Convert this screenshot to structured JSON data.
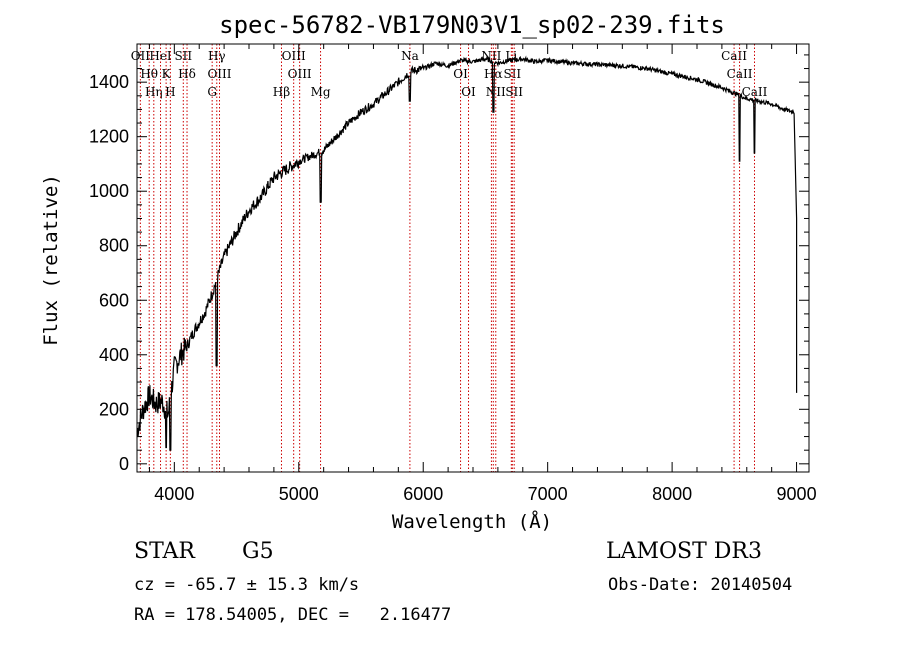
{
  "chart_data": {
    "type": "line",
    "title": "spec-56782-VB179N03V1_sp02-239.fits",
    "xlabel": "Wavelength (Å)",
    "ylabel": "Flux (relative)",
    "xlim": [
      3700,
      9100
    ],
    "ylim": [
      -30,
      1540
    ],
    "x_ticks": [
      4000,
      5000,
      6000,
      7000,
      8000,
      9000
    ],
    "y_ticks": [
      0,
      200,
      400,
      600,
      800,
      1000,
      1200,
      1400
    ],
    "x_tick_labels": [
      "4000",
      "5000",
      "6000",
      "7000",
      "8000",
      "9000"
    ],
    "y_tick_labels": [
      "0",
      "200",
      "400",
      "600",
      "800",
      "1000",
      "1200",
      "1400"
    ],
    "grid": false,
    "series": [
      {
        "name": "flux",
        "x": [
          3700,
          3750,
          3800,
          3850,
          3900,
          3950,
          4000,
          4050,
          4100,
          4150,
          4200,
          4250,
          4300,
          4350,
          4400,
          4500,
          4600,
          4700,
          4800,
          4900,
          5000,
          5100,
          5200,
          5300,
          5400,
          5500,
          5600,
          5700,
          5800,
          5900,
          6000,
          6100,
          6200,
          6300,
          6400,
          6500,
          6600,
          6700,
          6800,
          6900,
          7000,
          7200,
          7400,
          7600,
          7800,
          8000,
          8200,
          8400,
          8500,
          8600,
          8700,
          8800,
          8900,
          8980,
          9000
        ],
        "y": [
          120,
          200,
          250,
          220,
          230,
          180,
          350,
          400,
          430,
          480,
          520,
          560,
          620,
          690,
          760,
          850,
          930,
          980,
          1050,
          1080,
          1110,
          1130,
          1150,
          1200,
          1250,
          1290,
          1320,
          1360,
          1400,
          1440,
          1450,
          1470,
          1460,
          1480,
          1475,
          1485,
          1470,
          1480,
          1485,
          1475,
          1480,
          1470,
          1465,
          1460,
          1450,
          1430,
          1410,
          1380,
          1360,
          1340,
          1330,
          1320,
          1300,
          1290,
          900
        ]
      }
    ],
    "absorption_dips": [
      {
        "x": 3934,
        "y": 40
      },
      {
        "x": 3968,
        "y": 30
      },
      {
        "x": 4340,
        "y": 340
      },
      {
        "x": 5175,
        "y": 940
      },
      {
        "x": 5893,
        "y": 1310
      },
      {
        "x": 6563,
        "y": 1270
      },
      {
        "x": 8542,
        "y": 1090
      },
      {
        "x": 8662,
        "y": 1120
      },
      {
        "x": 9000,
        "y": 260
      }
    ],
    "spectral_lines": [
      {
        "x": 3727,
        "label": "OII"
      },
      {
        "x": 3798,
        "label": "Hθ"
      },
      {
        "x": 3835,
        "label": "Hη"
      },
      {
        "x": 3889,
        "label": "HeI"
      },
      {
        "x": 3934,
        "label": "K"
      },
      {
        "x": 3968,
        "label": "H"
      },
      {
        "x": 4072,
        "label": "SII"
      },
      {
        "x": 4102,
        "label": "Hδ"
      },
      {
        "x": 4304,
        "label": "G"
      },
      {
        "x": 4341,
        "label": "Hγ"
      },
      {
        "x": 4363,
        "label": "OIII"
      },
      {
        "x": 4861,
        "label": "Hβ"
      },
      {
        "x": 4959,
        "label": "OIII"
      },
      {
        "x": 5007,
        "label": "OIII"
      },
      {
        "x": 5175,
        "label": "Mg"
      },
      {
        "x": 5893,
        "label": "Na"
      },
      {
        "x": 6300,
        "label": "OI"
      },
      {
        "x": 6364,
        "label": "OI"
      },
      {
        "x": 6548,
        "label": "NII"
      },
      {
        "x": 6563,
        "label": "Hα"
      },
      {
        "x": 6583,
        "label": "NII"
      },
      {
        "x": 6708,
        "label": "Li"
      },
      {
        "x": 6716,
        "label": "SII"
      },
      {
        "x": 6731,
        "label": "SII"
      },
      {
        "x": 8498,
        "label": "CaII"
      },
      {
        "x": 8542,
        "label": "CaII"
      },
      {
        "x": 8662,
        "label": "CaII"
      }
    ]
  },
  "info": {
    "object_class": "STAR",
    "subclass": "G5",
    "survey": "LAMOST DR3",
    "cz": "cz = -65.7 ± 15.3 km/s",
    "obs_date": "Obs-Date: 20140504",
    "coords": "RA = 178.54005, DEC =   2.16477"
  }
}
